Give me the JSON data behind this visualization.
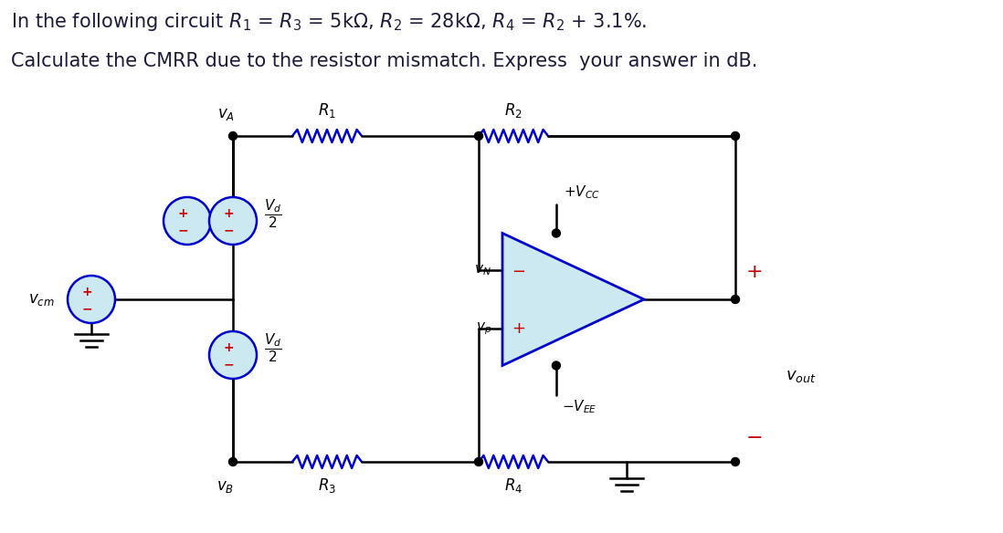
{
  "bg_color": "#ffffff",
  "black": "#000000",
  "blue": "#0000cc",
  "red": "#cc0000",
  "op_fill": "#cce8f0",
  "op_edge": "#0000cc",
  "fig_w": 10.98,
  "fig_h": 5.84,
  "dpi": 100
}
